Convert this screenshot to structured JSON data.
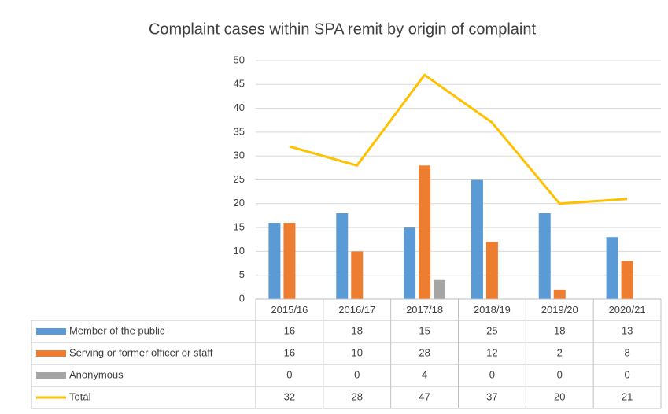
{
  "chart_data": {
    "type": "bar",
    "title": "Complaint cases within SPA remit by origin of complaint",
    "categories": [
      "2015/16",
      "2016/17",
      "2017/18",
      "2018/19",
      "2019/20",
      "2020/21"
    ],
    "series": [
      {
        "name": "Member of the public",
        "color": "#5b9bd5",
        "type": "bar",
        "values": [
          16,
          18,
          15,
          25,
          18,
          13
        ]
      },
      {
        "name": "Serving or former officer or staff",
        "color": "#ed7d31",
        "type": "bar",
        "values": [
          16,
          10,
          28,
          12,
          2,
          8
        ]
      },
      {
        "name": "Anonymous",
        "color": "#a5a5a5",
        "type": "bar",
        "values": [
          0,
          0,
          4,
          0,
          0,
          0
        ]
      },
      {
        "name": "Total",
        "color": "#ffc000",
        "type": "line",
        "values": [
          32,
          28,
          47,
          37,
          20,
          21
        ]
      }
    ],
    "ylim": [
      0,
      50
    ],
    "yticks": [
      0,
      5,
      10,
      15,
      20,
      25,
      30,
      35,
      40,
      45,
      50
    ],
    "grid": true,
    "data_table": true
  }
}
